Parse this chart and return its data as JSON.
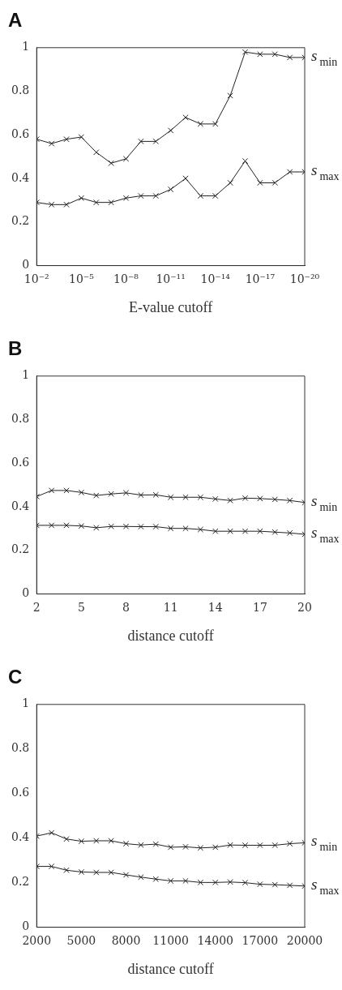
{
  "chart_data": [
    {
      "type": "line",
      "title": "A",
      "xlabel": "E-value cutoff",
      "log": "x",
      "marker": "cross",
      "grid": false,
      "x": [
        0.01,
        0.001,
        0.0001,
        1e-05,
        1e-06,
        1e-07,
        1e-08,
        1e-09,
        1e-10,
        1e-11,
        1e-12,
        1e-13,
        1e-14,
        1e-15,
        1e-16,
        1e-17,
        1e-18,
        1e-19,
        1e-20
      ],
      "xlim": [
        0.01,
        1e-20
      ],
      "xticks": [
        {
          "value": 0.01,
          "label": "10⁻²"
        },
        {
          "value": 1e-05,
          "label": "10⁻⁵"
        },
        {
          "value": 1e-08,
          "label": "10⁻⁸"
        },
        {
          "value": 1e-11,
          "label": "10⁻¹¹"
        },
        {
          "value": 1e-14,
          "label": "10⁻¹⁴"
        },
        {
          "value": 1e-17,
          "label": "10⁻¹⁷"
        },
        {
          "value": 1e-20,
          "label": "10⁻²⁰"
        }
      ],
      "ylim": [
        0,
        1
      ],
      "yticks": [
        0,
        0.2,
        0.4,
        0.6,
        0.8,
        1
      ],
      "series": [
        {
          "name": "s$_{min}$",
          "color": "#222222",
          "values": [
            0.58,
            0.56,
            0.58,
            0.59,
            0.52,
            0.47,
            0.49,
            0.57,
            0.57,
            0.62,
            0.68,
            0.65,
            0.65,
            0.78,
            0.98,
            0.97,
            0.97,
            0.955,
            0.955
          ]
        },
        {
          "name": "s$_{max}$",
          "color": "#222222",
          "values": [
            0.29,
            0.28,
            0.28,
            0.31,
            0.29,
            0.29,
            0.31,
            0.32,
            0.32,
            0.35,
            0.4,
            0.32,
            0.32,
            0.38,
            0.48,
            0.38,
            0.38,
            0.43,
            0.43
          ]
        }
      ]
    },
    {
      "type": "line",
      "title": "B",
      "xlabel": "distance cutoff",
      "marker": "cross",
      "grid": false,
      "x": [
        2,
        3,
        4,
        5,
        6,
        7,
        8,
        9,
        10,
        11,
        12,
        13,
        14,
        15,
        16,
        17,
        18,
        19,
        20
      ],
      "xlim": [
        2,
        20
      ],
      "xticks": [
        2,
        5,
        8,
        11,
        14,
        17,
        20
      ],
      "ylim": [
        0,
        1
      ],
      "yticks": [
        0,
        0.2,
        0.4,
        0.6,
        0.8,
        1
      ],
      "series": [
        {
          "name": "s$_{min}$",
          "color": "#222222",
          "values": [
            0.447,
            0.475,
            0.475,
            0.466,
            0.452,
            0.459,
            0.464,
            0.454,
            0.455,
            0.444,
            0.444,
            0.444,
            0.436,
            0.429,
            0.44,
            0.438,
            0.434,
            0.429,
            0.42
          ]
        },
        {
          "name": "s$_{max}$",
          "color": "#222222",
          "values": [
            0.315,
            0.315,
            0.315,
            0.312,
            0.304,
            0.31,
            0.31,
            0.309,
            0.309,
            0.301,
            0.301,
            0.296,
            0.288,
            0.288,
            0.288,
            0.288,
            0.284,
            0.28,
            0.274
          ]
        }
      ]
    },
    {
      "type": "line",
      "title": "C",
      "xlabel": "distance cutoff",
      "marker": "cross",
      "grid": false,
      "x": [
        2000,
        3000,
        4000,
        5000,
        6000,
        7000,
        8000,
        9000,
        10000,
        11000,
        12000,
        13000,
        14000,
        15000,
        16000,
        17000,
        18000,
        19000,
        20000
      ],
      "xlim": [
        2000,
        20000
      ],
      "xticks": [
        2000,
        5000,
        8000,
        11000,
        14000,
        17000,
        20000
      ],
      "ylim": [
        0,
        1
      ],
      "yticks": [
        0,
        0.2,
        0.4,
        0.6,
        0.8,
        1
      ],
      "series": [
        {
          "name": "s$_{min}$",
          "color": "#222222",
          "values": [
            0.409,
            0.424,
            0.396,
            0.386,
            0.388,
            0.388,
            0.375,
            0.369,
            0.373,
            0.359,
            0.361,
            0.356,
            0.359,
            0.369,
            0.368,
            0.368,
            0.368,
            0.375,
            0.379
          ]
        },
        {
          "name": "s$_{max}$",
          "color": "#222222",
          "values": [
            0.273,
            0.273,
            0.256,
            0.248,
            0.246,
            0.246,
            0.235,
            0.225,
            0.216,
            0.208,
            0.208,
            0.201,
            0.201,
            0.203,
            0.2,
            0.193,
            0.191,
            0.188,
            0.185
          ]
        }
      ]
    }
  ]
}
